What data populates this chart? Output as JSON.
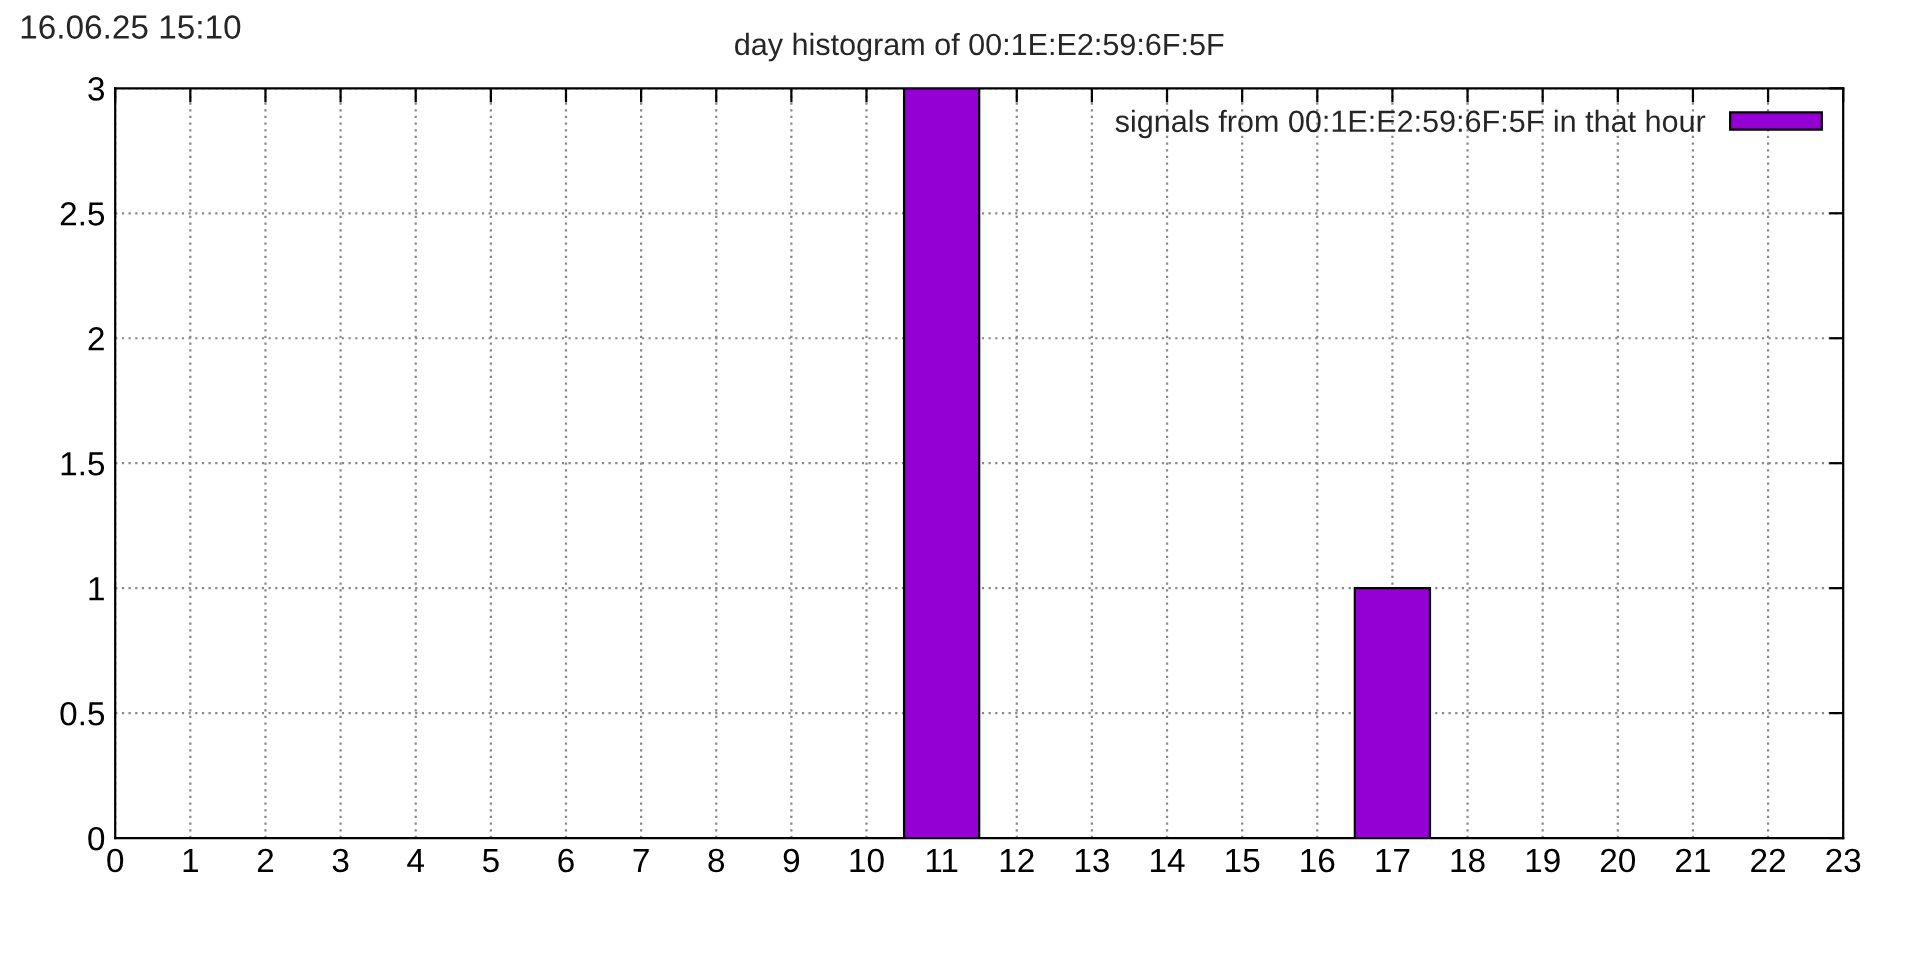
{
  "chart_data": {
    "type": "bar",
    "title": "day histogram of 00:1E:E2:59:6F:5F",
    "annotations": [
      "16.06.25 15:10"
    ],
    "x": [
      11,
      17
    ],
    "series": [
      {
        "name": "signals from 00:1E:E2:59:6F:5F in that hour",
        "color": "#9400d3",
        "values": [
          3,
          1
        ]
      }
    ],
    "xlim": [
      0,
      23
    ],
    "xticks": [
      0,
      1,
      2,
      3,
      4,
      5,
      6,
      7,
      8,
      9,
      10,
      11,
      12,
      13,
      14,
      15,
      16,
      17,
      18,
      19,
      20,
      21,
      22,
      23
    ],
    "ylim": [
      0,
      3
    ],
    "yticks": [
      0,
      0.5,
      1,
      1.5,
      2,
      2.5,
      3
    ],
    "grid": true,
    "legend": "top right"
  }
}
